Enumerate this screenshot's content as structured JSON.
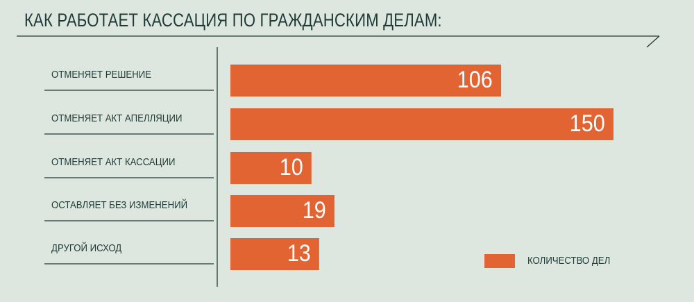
{
  "chart_data": {
    "type": "bar",
    "orientation": "horizontal",
    "title": "КАК РАБОТАЕТ КАССАЦИЯ ПО ГРАЖДАНСКИМ ДЕЛАМ:",
    "categories": [
      "ОТМЕНЯЕТ РЕШЕНИЕ",
      "ОТМЕНЯЕТ АКТ АПЕЛЛЯЦИИ",
      "ОТМЕНЯЕТ АКТ КАССАЦИИ",
      "ОСТАВЛЯЕТ БЕЗ ИЗМЕНЕНИЙ",
      "ДРУГОЙ ИСХОД"
    ],
    "series": [
      {
        "name": "КОЛИЧЕСТВО ДЕЛ",
        "values": [
          106,
          150,
          10,
          19,
          13
        ],
        "color": "#e26433"
      }
    ],
    "legend": "bottom-right",
    "grid": false
  }
}
